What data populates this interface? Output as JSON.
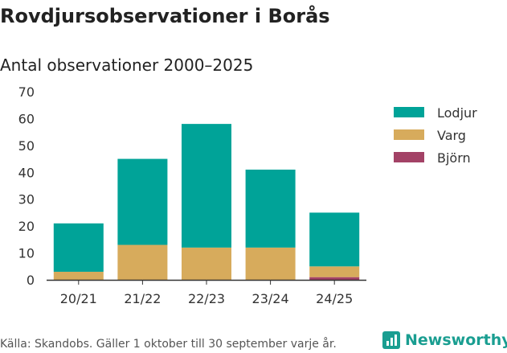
{
  "page": {
    "title": "Rovdjursobservationer i Borås",
    "subtitle": "Antal observationer 2000–2025",
    "source": "Källa: Skandobs. Gäller 1 oktober till 30 september varje år.",
    "brand": "Newsworthy",
    "brand_icon": "bar-chart-icon"
  },
  "chart_data": {
    "type": "bar",
    "stacked": true,
    "title": "Antal observationer 2000–2025",
    "xlabel": "",
    "ylabel": "",
    "categories": [
      "20/21",
      "21/22",
      "22/23",
      "23/24",
      "24/25"
    ],
    "series": [
      {
        "name": "Björn",
        "color": "#a34266",
        "values": [
          0,
          0,
          0,
          0,
          1
        ]
      },
      {
        "name": "Varg",
        "color": "#d7ab5c",
        "values": [
          3,
          13,
          12,
          12,
          4
        ]
      },
      {
        "name": "Lodjur",
        "color": "#00a398",
        "values": [
          18,
          32,
          46,
          29,
          20
        ]
      }
    ],
    "legend_order": [
      "Lodjur",
      "Varg",
      "Björn"
    ],
    "ylim": [
      0,
      70
    ],
    "yticks": [
      0,
      10,
      20,
      30,
      40,
      50,
      60,
      70
    ],
    "grid": false,
    "legend_position": "right"
  }
}
